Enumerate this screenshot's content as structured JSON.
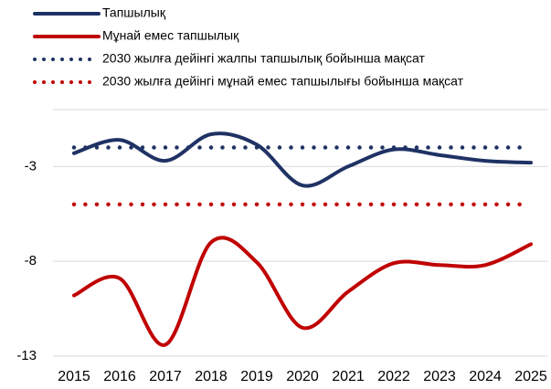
{
  "chart_data": {
    "type": "line",
    "categories": [
      "2015",
      "2016",
      "2017",
      "2018",
      "2019",
      "2020",
      "2021",
      "2022",
      "2023",
      "2024",
      "2025"
    ],
    "series": [
      {
        "name": "Тапшылық",
        "color": "#1f3264",
        "style": "solid",
        "values": [
          -2.3,
          -1.6,
          -2.7,
          -1.3,
          -1.85,
          -4.0,
          -3.0,
          -2.1,
          -2.4,
          -2.7,
          -2.8
        ]
      },
      {
        "name": "Мұнай емес тапшылық",
        "color": "#c00000",
        "style": "solid",
        "values": [
          -9.8,
          -8.9,
          -12.4,
          -7.0,
          -8.05,
          -11.5,
          -9.6,
          -8.1,
          -8.2,
          -8.2,
          -7.1
        ]
      },
      {
        "name": "2030 жылға дейінгі жалпы тапшылық бойынша мақсат",
        "color": "#1f3264",
        "style": "dotted",
        "values": [
          -2,
          -2,
          -2,
          -2,
          -2,
          -2,
          -2,
          -2,
          -2,
          -2,
          -2
        ]
      },
      {
        "name": "2030 жылға дейінгі мұнай емес тапшылығы бойынша мақсат",
        "color": "#c00000",
        "style": "dotted",
        "values": [
          -5,
          -5,
          -5,
          -5,
          -5,
          -5,
          -5,
          -5,
          -5,
          -5,
          -5
        ]
      }
    ],
    "ylim": [
      -13,
      0
    ],
    "yticks": [
      -13,
      -8,
      -3
    ],
    "grid": true,
    "legend": "top-left"
  }
}
